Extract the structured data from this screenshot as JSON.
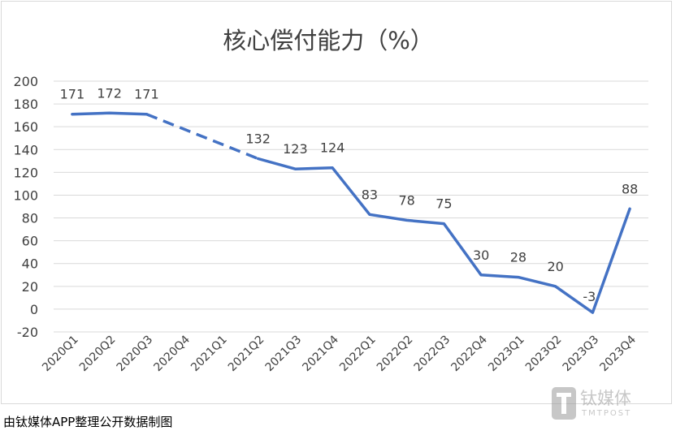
{
  "chart_data": {
    "type": "line",
    "title": "核心偿付能力（%）",
    "categories": [
      "2020Q1",
      "2020Q2",
      "2020Q3",
      "2020Q4",
      "2021Q1",
      "2021Q2",
      "2021Q3",
      "2021Q4",
      "2022Q1",
      "2022Q2",
      "2022Q3",
      "2022Q4",
      "2023Q1",
      "2023Q2",
      "2023Q3",
      "2023Q4"
    ],
    "values": [
      171,
      172,
      171,
      null,
      null,
      132,
      123,
      124,
      83,
      78,
      75,
      30,
      28,
      20,
      -3,
      88
    ],
    "value_labels": [
      "171",
      "172",
      "171",
      "",
      "",
      "132",
      "123",
      "124",
      "83",
      "78",
      "75",
      "30",
      "28",
      "20",
      "-3",
      "88"
    ],
    "dashed_segment": [
      "2020Q3",
      "2021Q2"
    ],
    "ylim": [
      -20,
      200
    ],
    "yticks": [
      "-20",
      "0",
      "20",
      "40",
      "60",
      "80",
      "100",
      "120",
      "140",
      "160",
      "180",
      "200"
    ],
    "grid": true,
    "legend": "none",
    "line_color": "#4472c4"
  },
  "source_note": "由钛媒体APP整理公开数据制图",
  "watermark": {
    "brand": "钛媒体",
    "sub": "TMTPOST"
  }
}
